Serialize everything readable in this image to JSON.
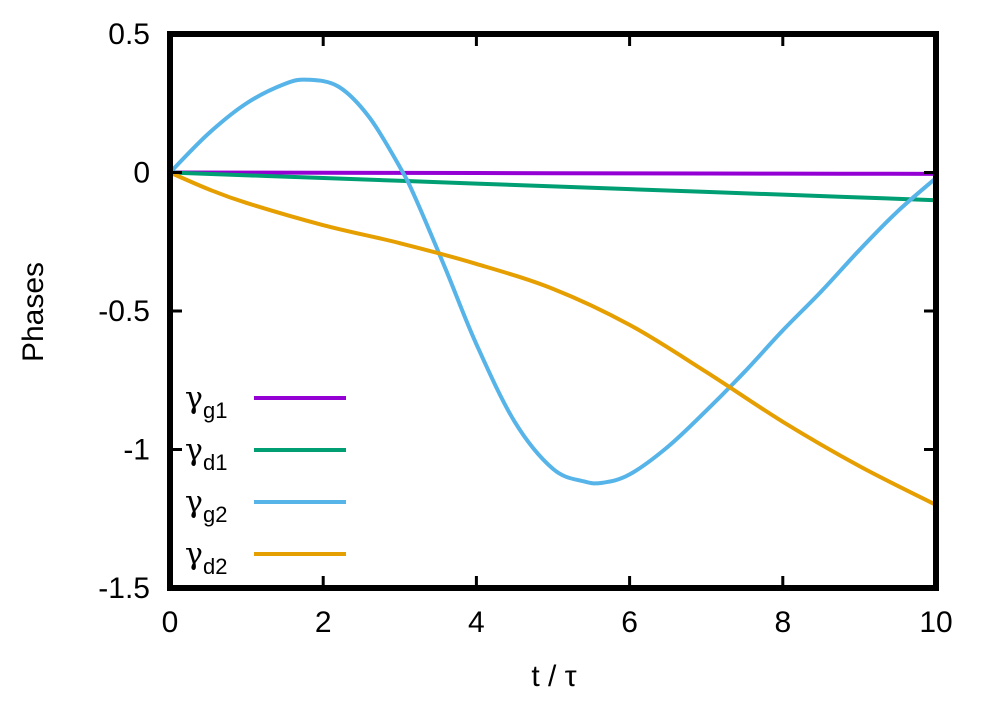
{
  "chart_data": {
    "type": "line",
    "title": "",
    "xlabel": "t / τ",
    "ylabel": "Phases",
    "xlim": [
      0,
      10
    ],
    "ylim": [
      -1.5,
      0.5
    ],
    "xticks": [
      "0",
      "2",
      "4",
      "6",
      "8",
      "10"
    ],
    "yticks": [
      "0.5",
      "0",
      "-0.5",
      "-1",
      "-1.5"
    ],
    "grid": false,
    "legend_position": "bottom-left",
    "series": [
      {
        "name": "γg1",
        "legend_main": "γ",
        "legend_sub": "g1",
        "color": "#9400d3",
        "x": [
          0,
          2,
          4,
          6,
          8,
          10
        ],
        "y": [
          0,
          -0.001,
          -0.002,
          -0.003,
          -0.004,
          -0.005
        ]
      },
      {
        "name": "γd1",
        "legend_main": "γ",
        "legend_sub": "d1",
        "color": "#009e73",
        "x": [
          0,
          2,
          4,
          6,
          8,
          10
        ],
        "y": [
          0,
          -0.02,
          -0.04,
          -0.06,
          -0.08,
          -0.1
        ]
      },
      {
        "name": "γg2",
        "legend_main": "γ",
        "legend_sub": "g2",
        "color": "#56b4e9",
        "x": [
          0,
          0.5,
          1,
          1.5,
          1.8,
          2.2,
          2.6,
          3.0,
          3.2,
          3.6,
          4.0,
          4.5,
          5.0,
          5.4,
          5.65,
          6.0,
          6.5,
          7.0,
          7.5,
          8.0,
          8.5,
          9.0,
          9.5,
          10
        ],
        "y": [
          0,
          0.14,
          0.25,
          0.32,
          0.335,
          0.31,
          0.2,
          0.02,
          -0.09,
          -0.35,
          -0.62,
          -0.9,
          -1.07,
          -1.115,
          -1.12,
          -1.09,
          -0.99,
          -0.86,
          -0.72,
          -0.57,
          -0.43,
          -0.28,
          -0.14,
          -0.02
        ]
      },
      {
        "name": "γd2",
        "legend_main": "γ",
        "legend_sub": "d2",
        "color": "#e69f00",
        "x": [
          0,
          0.5,
          1,
          2,
          3,
          4,
          5,
          6,
          7,
          8,
          9,
          10
        ],
        "y": [
          0,
          -0.06,
          -0.11,
          -0.19,
          -0.255,
          -0.33,
          -0.42,
          -0.55,
          -0.72,
          -0.9,
          -1.06,
          -1.2
        ]
      }
    ]
  }
}
